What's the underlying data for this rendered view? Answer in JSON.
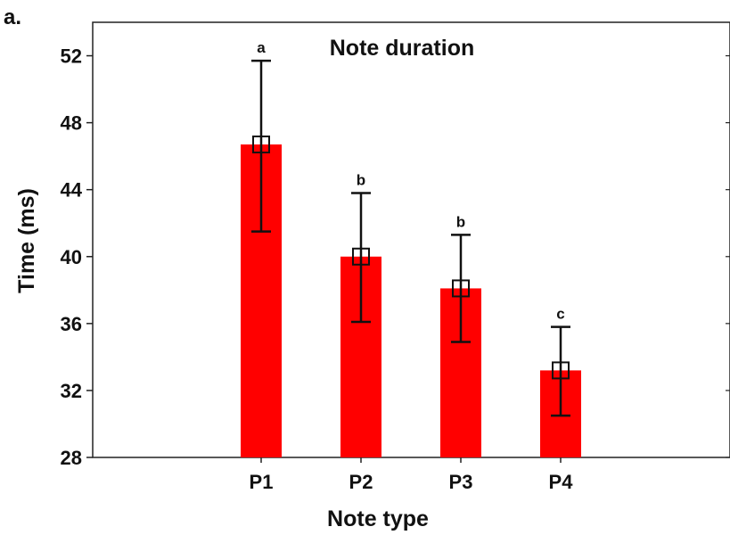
{
  "chart_data": {
    "type": "bar",
    "panel_label": "a.",
    "title": "Note duration",
    "xlabel": "Note type",
    "ylabel": "Time (ms)",
    "ylim": [
      28,
      54
    ],
    "yticks": [
      "28",
      "32",
      "36",
      "40",
      "44",
      "48",
      "52"
    ],
    "categories": [
      "P1",
      "P2",
      "P3",
      "P4"
    ],
    "values": [
      46.7,
      40.0,
      38.1,
      33.2
    ],
    "error_low": [
      41.5,
      36.1,
      34.9,
      30.5
    ],
    "error_high": [
      51.7,
      43.8,
      41.3,
      35.8
    ],
    "significance": [
      "a",
      "b",
      "b",
      "c"
    ],
    "bar_color": "#ff0000",
    "grid": false
  }
}
